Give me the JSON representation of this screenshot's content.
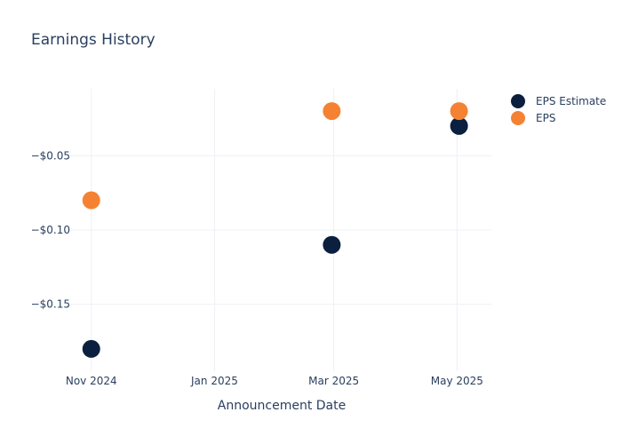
{
  "chart_data": {
    "type": "scatter",
    "title": "Earnings History",
    "xlabel": "Announcement Date",
    "ylabel": "",
    "x_ticks": [
      {
        "date": "2024-11-01",
        "label": "Nov 2024"
      },
      {
        "date": "2025-01-01",
        "label": "Jan 2025"
      },
      {
        "date": "2025-03-01",
        "label": "Mar 2025"
      },
      {
        "date": "2025-05-01",
        "label": "May 2025"
      }
    ],
    "y_ticks": [
      {
        "value": -0.05,
        "label": "−$0.05"
      },
      {
        "value": -0.1,
        "label": "−$0.10"
      },
      {
        "value": -0.15,
        "label": "−$0.15"
      }
    ],
    "xlim": [
      "2024-10-22",
      "2025-05-18"
    ],
    "ylim": [
      -0.195,
      -0.005
    ],
    "grid": true,
    "legend_position": "top-right",
    "series": [
      {
        "name": "EPS Estimate",
        "color": "#0b1f3f",
        "points": [
          {
            "x": "2024-11-01",
            "y": -0.18
          },
          {
            "x": "2025-02-28",
            "y": -0.11
          },
          {
            "x": "2025-05-02",
            "y": -0.03
          }
        ]
      },
      {
        "name": "EPS",
        "color": "#f58232",
        "points": [
          {
            "x": "2024-11-01",
            "y": -0.08
          },
          {
            "x": "2025-02-28",
            "y": -0.02
          },
          {
            "x": "2025-05-02",
            "y": -0.02
          }
        ]
      }
    ]
  }
}
